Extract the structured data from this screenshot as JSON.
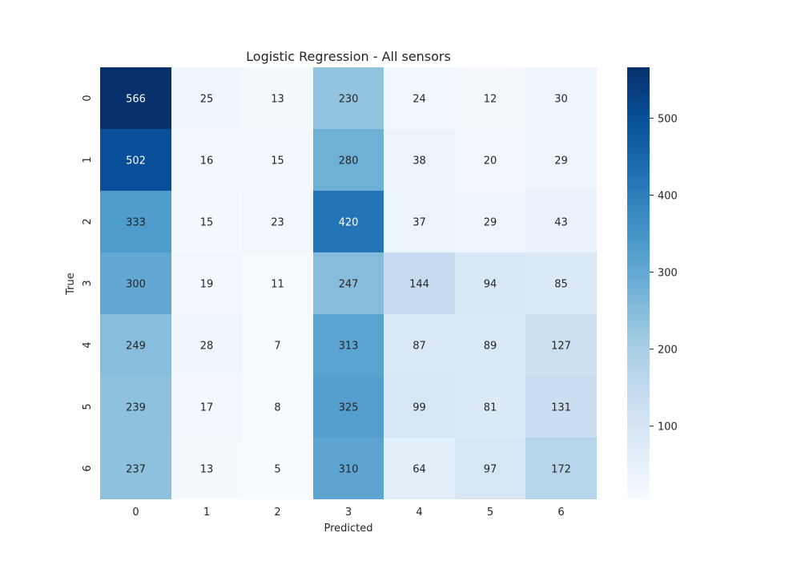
{
  "chart_data": {
    "type": "heatmap",
    "title": "Logistic Regression - All sensors",
    "xlabel": "Predicted",
    "ylabel": "True",
    "x_categories": [
      "0",
      "1",
      "2",
      "3",
      "4",
      "5",
      "6"
    ],
    "y_categories": [
      "0",
      "1",
      "2",
      "3",
      "4",
      "5",
      "6"
    ],
    "values": [
      [
        566,
        25,
        13,
        230,
        24,
        12,
        30
      ],
      [
        502,
        16,
        15,
        280,
        38,
        20,
        29
      ],
      [
        333,
        15,
        23,
        420,
        37,
        29,
        43
      ],
      [
        300,
        19,
        11,
        247,
        144,
        94,
        85
      ],
      [
        249,
        28,
        7,
        313,
        87,
        89,
        127
      ],
      [
        239,
        17,
        8,
        325,
        99,
        81,
        131
      ],
      [
        237,
        13,
        5,
        310,
        64,
        97,
        172
      ]
    ],
    "colormap": "Blues",
    "color_range": [
      5,
      566
    ],
    "colorbar_ticks": [
      100,
      200,
      300,
      400,
      500
    ],
    "grid": false,
    "colorbar_placement": "right"
  }
}
